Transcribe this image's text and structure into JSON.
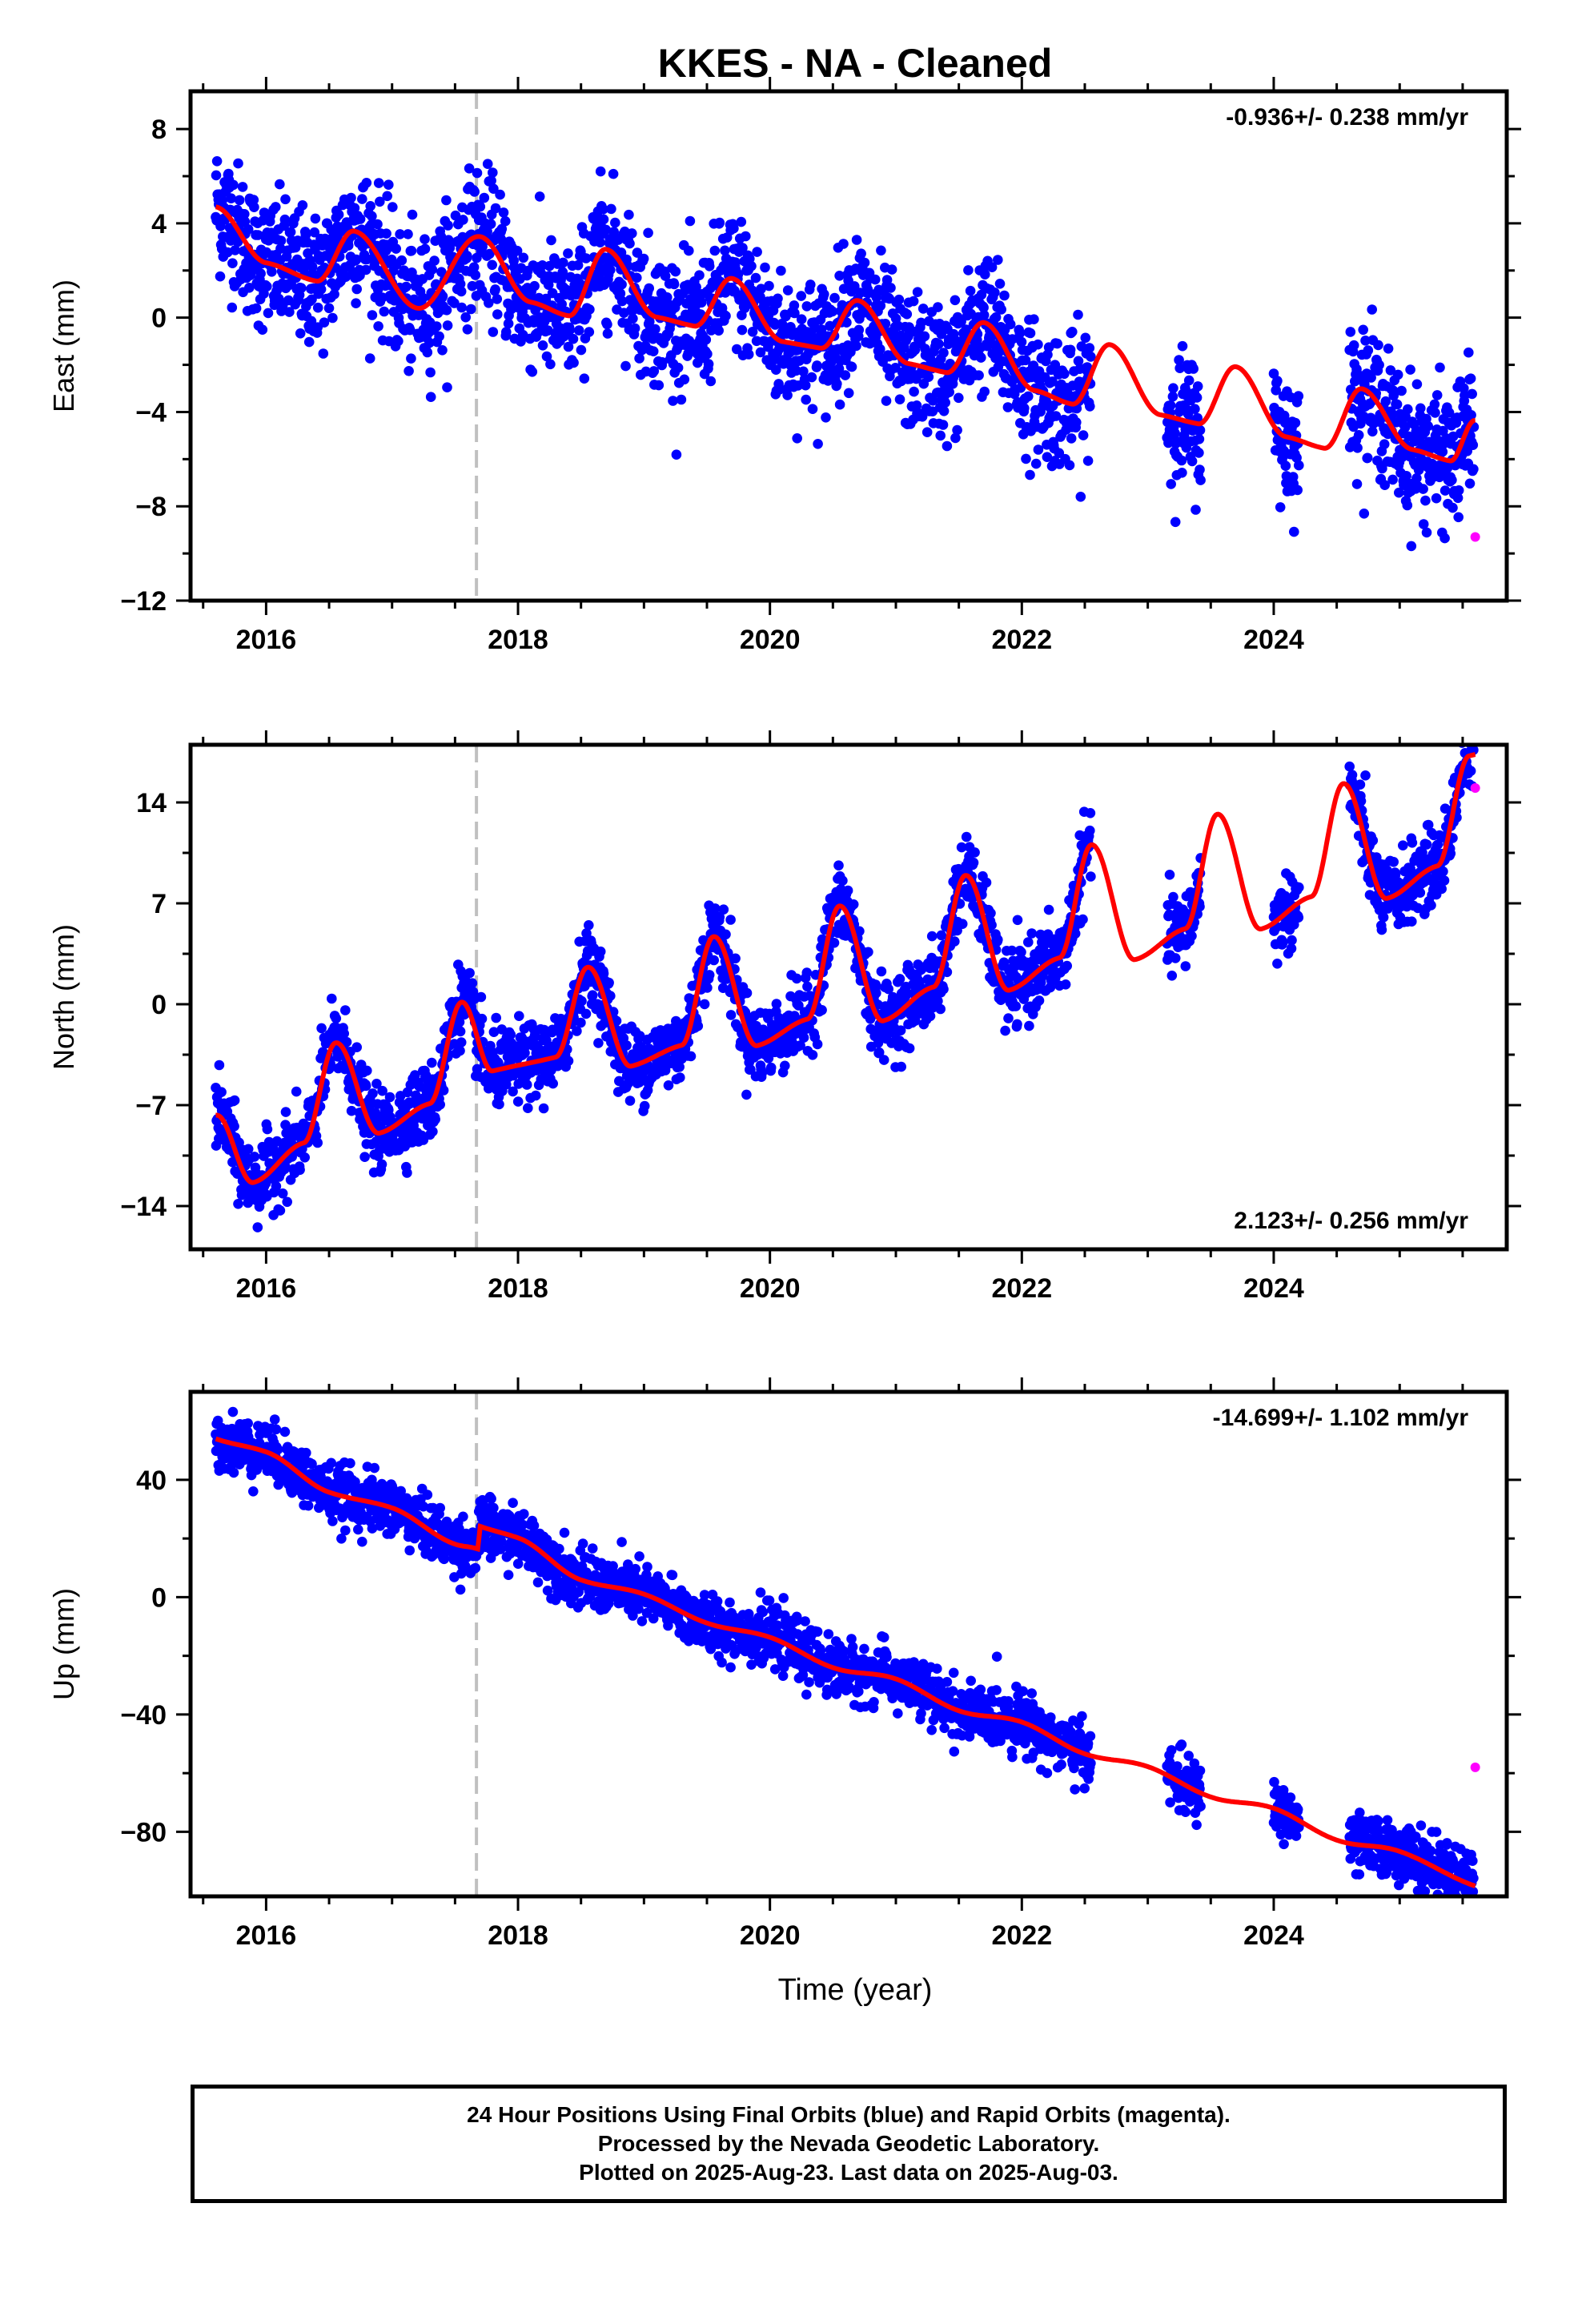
{
  "chart_data": {
    "title": "KKES  - NA - Cleaned",
    "type": "scatter",
    "xlabel": "Time (year)",
    "xlim": [
      2015.4,
      2025.85
    ],
    "x_ticks": [
      2016,
      2018,
      2020,
      2022,
      2024
    ],
    "equipment_change_epoch": 2017.67,
    "colors": {
      "final": "#0000ff",
      "rapid": "#ff00ff",
      "model": "#ff0000",
      "offset_line": "#c0c0c0"
    },
    "data_gaps": [
      [
        2022.55,
        2023.15
      ],
      [
        2023.42,
        2024.0
      ],
      [
        2024.2,
        2024.6
      ]
    ],
    "panels": [
      {
        "name": "East",
        "ylabel": "East (mm)",
        "ylim": [
          -12,
          9.6
        ],
        "y_ticks": [
          8,
          4,
          0,
          -4,
          -8,
          -12
        ],
        "rate_text": "-0.936+/- 0.238 mm/yr",
        "rate_position": "top-right",
        "model_trend": {
          "t0": 2015.6,
          "y0": 3.9,
          "slope": -0.936
        },
        "model_seasonal": [
          [
            2015.6,
            0.8
          ],
          [
            2016.0,
            -1.2
          ],
          [
            2016.4,
            -1.6
          ],
          [
            2016.7,
            0.8
          ],
          [
            2017.2,
            -2.0
          ],
          [
            2017.7,
            1.5
          ],
          [
            2018.1,
            -0.9
          ],
          [
            2018.4,
            -1.2
          ],
          [
            2018.7,
            1.9
          ],
          [
            2019.1,
            -0.6
          ],
          [
            2019.4,
            -0.7
          ],
          [
            2019.7,
            1.6
          ],
          [
            2020.1,
            -0.7
          ],
          [
            2020.4,
            -0.7
          ],
          [
            2020.7,
            1.6
          ],
          [
            2021.1,
            -0.7
          ],
          [
            2021.4,
            -0.8
          ],
          [
            2021.7,
            1.6
          ],
          [
            2022.1,
            -0.9
          ],
          [
            2022.4,
            -1.2
          ],
          [
            2022.7,
            1.6
          ],
          [
            2023.1,
            -1.0
          ],
          [
            2023.4,
            -1.1
          ],
          [
            2023.7,
            1.6
          ],
          [
            2024.1,
            -1.0
          ],
          [
            2024.4,
            -1.2
          ],
          [
            2024.7,
            1.6
          ],
          [
            2025.1,
            -0.6
          ],
          [
            2025.4,
            -0.8
          ],
          [
            2025.6,
            1.1
          ]
        ],
        "scatter_sd": 1.4,
        "rapid_point": [
          2025.6,
          -9.3
        ]
      },
      {
        "name": "North",
        "ylabel": "North (mm)",
        "ylim": [
          -17,
          18
        ],
        "y_ticks": [
          14,
          7,
          0,
          -7,
          -14
        ],
        "rate_text": "2.123+/- 0.256 mm/yr",
        "rate_position": "bottom-right",
        "model_trend": {
          "t0": 2015.6,
          "y0": -8.5,
          "slope": 2.123
        },
        "model_seasonal": [
          [
            2015.6,
            0.8
          ],
          [
            2015.9,
            -4.5
          ],
          [
            2016.3,
            -2.6
          ],
          [
            2016.55,
            3.8
          ],
          [
            2016.9,
            -3.2
          ],
          [
            2017.3,
            -2.0
          ],
          [
            2017.55,
            4.5
          ],
          [
            2017.8,
            -0.8
          ],
          [
            2018.3,
            -0.9
          ],
          [
            2018.55,
            4.8
          ],
          [
            2018.9,
            -2.8
          ],
          [
            2019.3,
            -2.2
          ],
          [
            2019.55,
            4.8
          ],
          [
            2019.9,
            -3.5
          ],
          [
            2020.3,
            -2.5
          ],
          [
            2020.55,
            4.8
          ],
          [
            2020.9,
            -3.9
          ],
          [
            2021.3,
            -2.4
          ],
          [
            2021.55,
            4.8
          ],
          [
            2021.9,
            -3.9
          ],
          [
            2022.3,
            -2.5
          ],
          [
            2022.55,
            4.8
          ],
          [
            2022.9,
            -3.9
          ],
          [
            2023.3,
            -2.6
          ],
          [
            2023.55,
            4.8
          ],
          [
            2023.9,
            -3.9
          ],
          [
            2024.3,
            -2.5
          ],
          [
            2024.55,
            4.8
          ],
          [
            2024.9,
            -3.9
          ],
          [
            2025.3,
            -2.5
          ],
          [
            2025.55,
            4.6
          ]
        ],
        "scatter_sd": 1.3,
        "rapid_point": [
          2025.6,
          15.0
        ]
      },
      {
        "name": "Up",
        "ylabel": "Up (mm)",
        "ylim": [
          -102,
          70
        ],
        "y_ticks": [
          40,
          0,
          -40,
          -80
        ],
        "rate_text": "-14.699+/- 1.102 mm/yr",
        "rate_position": "top-right",
        "model_trend": {
          "t0": 2015.6,
          "y0": 50.0,
          "slope": -14.699
        },
        "model_seasonal": [
          [
            2015.6,
            4.0
          ],
          [
            2016.0,
            5.4
          ],
          [
            2016.5,
            -1.0
          ],
          [
            2017.0,
            1.0
          ],
          [
            2017.5,
            -4.0
          ],
          [
            2017.68,
            -3.0
          ],
          [
            2017.7,
            5.0
          ],
          [
            2018.0,
            5.5
          ],
          [
            2018.5,
            -1.5
          ],
          [
            2019.0,
            1.0
          ],
          [
            2019.5,
            -1.5
          ],
          [
            2020.0,
            1.0
          ],
          [
            2020.5,
            -2.0
          ],
          [
            2021.0,
            1.5
          ],
          [
            2021.5,
            -2.0
          ],
          [
            2022.0,
            1.5
          ],
          [
            2022.5,
            -2.0
          ],
          [
            2023.0,
            1.0
          ],
          [
            2023.5,
            -2.0
          ],
          [
            2024.0,
            1.5
          ],
          [
            2024.5,
            -2.0
          ],
          [
            2025.0,
            1.5
          ],
          [
            2025.6,
            -1.5
          ]
        ],
        "scatter_sd": 4.8,
        "rapid_point": [
          2025.6,
          -58.0
        ]
      }
    ],
    "footer_lines": [
      "24 Hour Positions Using Final Orbits (blue) and Rapid Orbits (magenta).",
      "Processed by the Nevada Geodetic Laboratory.",
      "Plotted on 2025-Aug-23. Last data on 2025-Aug-03."
    ]
  }
}
